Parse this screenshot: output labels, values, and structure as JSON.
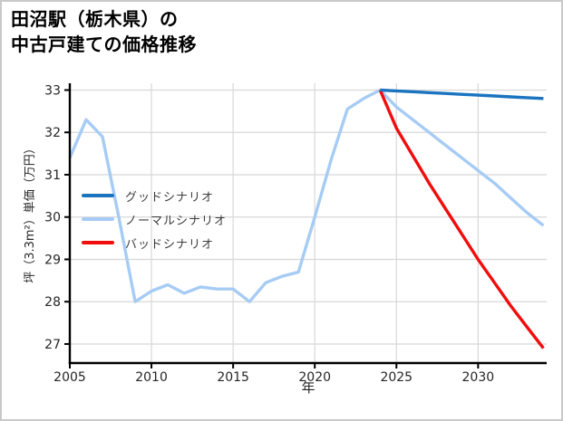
{
  "window": {
    "background_color": "#ffffff",
    "border_color": "#c9c9c9"
  },
  "header": {
    "title_lines": [
      "田沼駅（栃木県）の",
      "中古戸建ての価格推移"
    ]
  },
  "chart_data": {
    "type": "line",
    "title": "田沼駅（栃木県）の中古戸建ての価格推移",
    "xlabel": "年",
    "ylabel": "坪（3.3m²）単価（万円）",
    "grid": true,
    "grid_color": "#d8d8d8",
    "axis_color": "#000000",
    "tick_label_color": "#262626",
    "xlim": [
      2005,
      2034.2
    ],
    "ylim": [
      26.55,
      33.16
    ],
    "x_ticks": [
      2005,
      2010,
      2015,
      2020,
      2025,
      2030
    ],
    "y_ticks": [
      27,
      28,
      29,
      30,
      31,
      32,
      33
    ],
    "legend": {
      "position": "inside-left-middle",
      "entries": [
        "グッドシナリオ",
        "ノーマルシナリオ",
        "バッドシナリオ"
      ]
    },
    "series": [
      {
        "name": "ノーマルシナリオ",
        "role": "normal-scenario",
        "note": "includes historical data 2005-2024, projection 2024-2034",
        "color": "#a6ccf5",
        "x": [
          2005,
          2006,
          2007,
          2008,
          2009,
          2010,
          2011,
          2012,
          2013,
          2014,
          2015,
          2016,
          2017,
          2018,
          2019,
          2020,
          2021,
          2022,
          2023,
          2024,
          2025,
          2026,
          2027,
          2028,
          2029,
          2030,
          2031,
          2032,
          2033,
          2034
        ],
        "values": [
          31.4,
          32.3,
          31.9,
          30.0,
          28.0,
          28.25,
          28.4,
          28.2,
          28.35,
          28.3,
          28.3,
          28.0,
          28.45,
          28.6,
          28.7,
          30.0,
          31.35,
          32.55,
          32.8,
          33.0,
          32.6,
          32.3,
          32.0,
          31.7,
          31.4,
          31.1,
          30.8,
          30.45,
          30.1,
          29.8
        ]
      },
      {
        "name": "バッドシナリオ",
        "role": "bad-scenario",
        "color": "#f20d0d",
        "x": [
          2024,
          2025,
          2026,
          2027,
          2028,
          2029,
          2030,
          2031,
          2032,
          2033,
          2034
        ],
        "values": [
          33.0,
          32.1,
          31.45,
          30.8,
          30.2,
          29.6,
          29.0,
          28.45,
          27.9,
          27.4,
          26.9
        ]
      },
      {
        "name": "グッドシナリオ",
        "role": "good-scenario",
        "color": "#1b74c0",
        "x": [
          2024,
          2025,
          2026,
          2027,
          2028,
          2029,
          2030,
          2031,
          2032,
          2033,
          2034
        ],
        "values": [
          33.0,
          32.98,
          32.96,
          32.94,
          32.92,
          32.9,
          32.88,
          32.86,
          32.84,
          32.82,
          32.8
        ]
      }
    ],
    "legend_order": [
      2,
      0,
      1
    ]
  }
}
